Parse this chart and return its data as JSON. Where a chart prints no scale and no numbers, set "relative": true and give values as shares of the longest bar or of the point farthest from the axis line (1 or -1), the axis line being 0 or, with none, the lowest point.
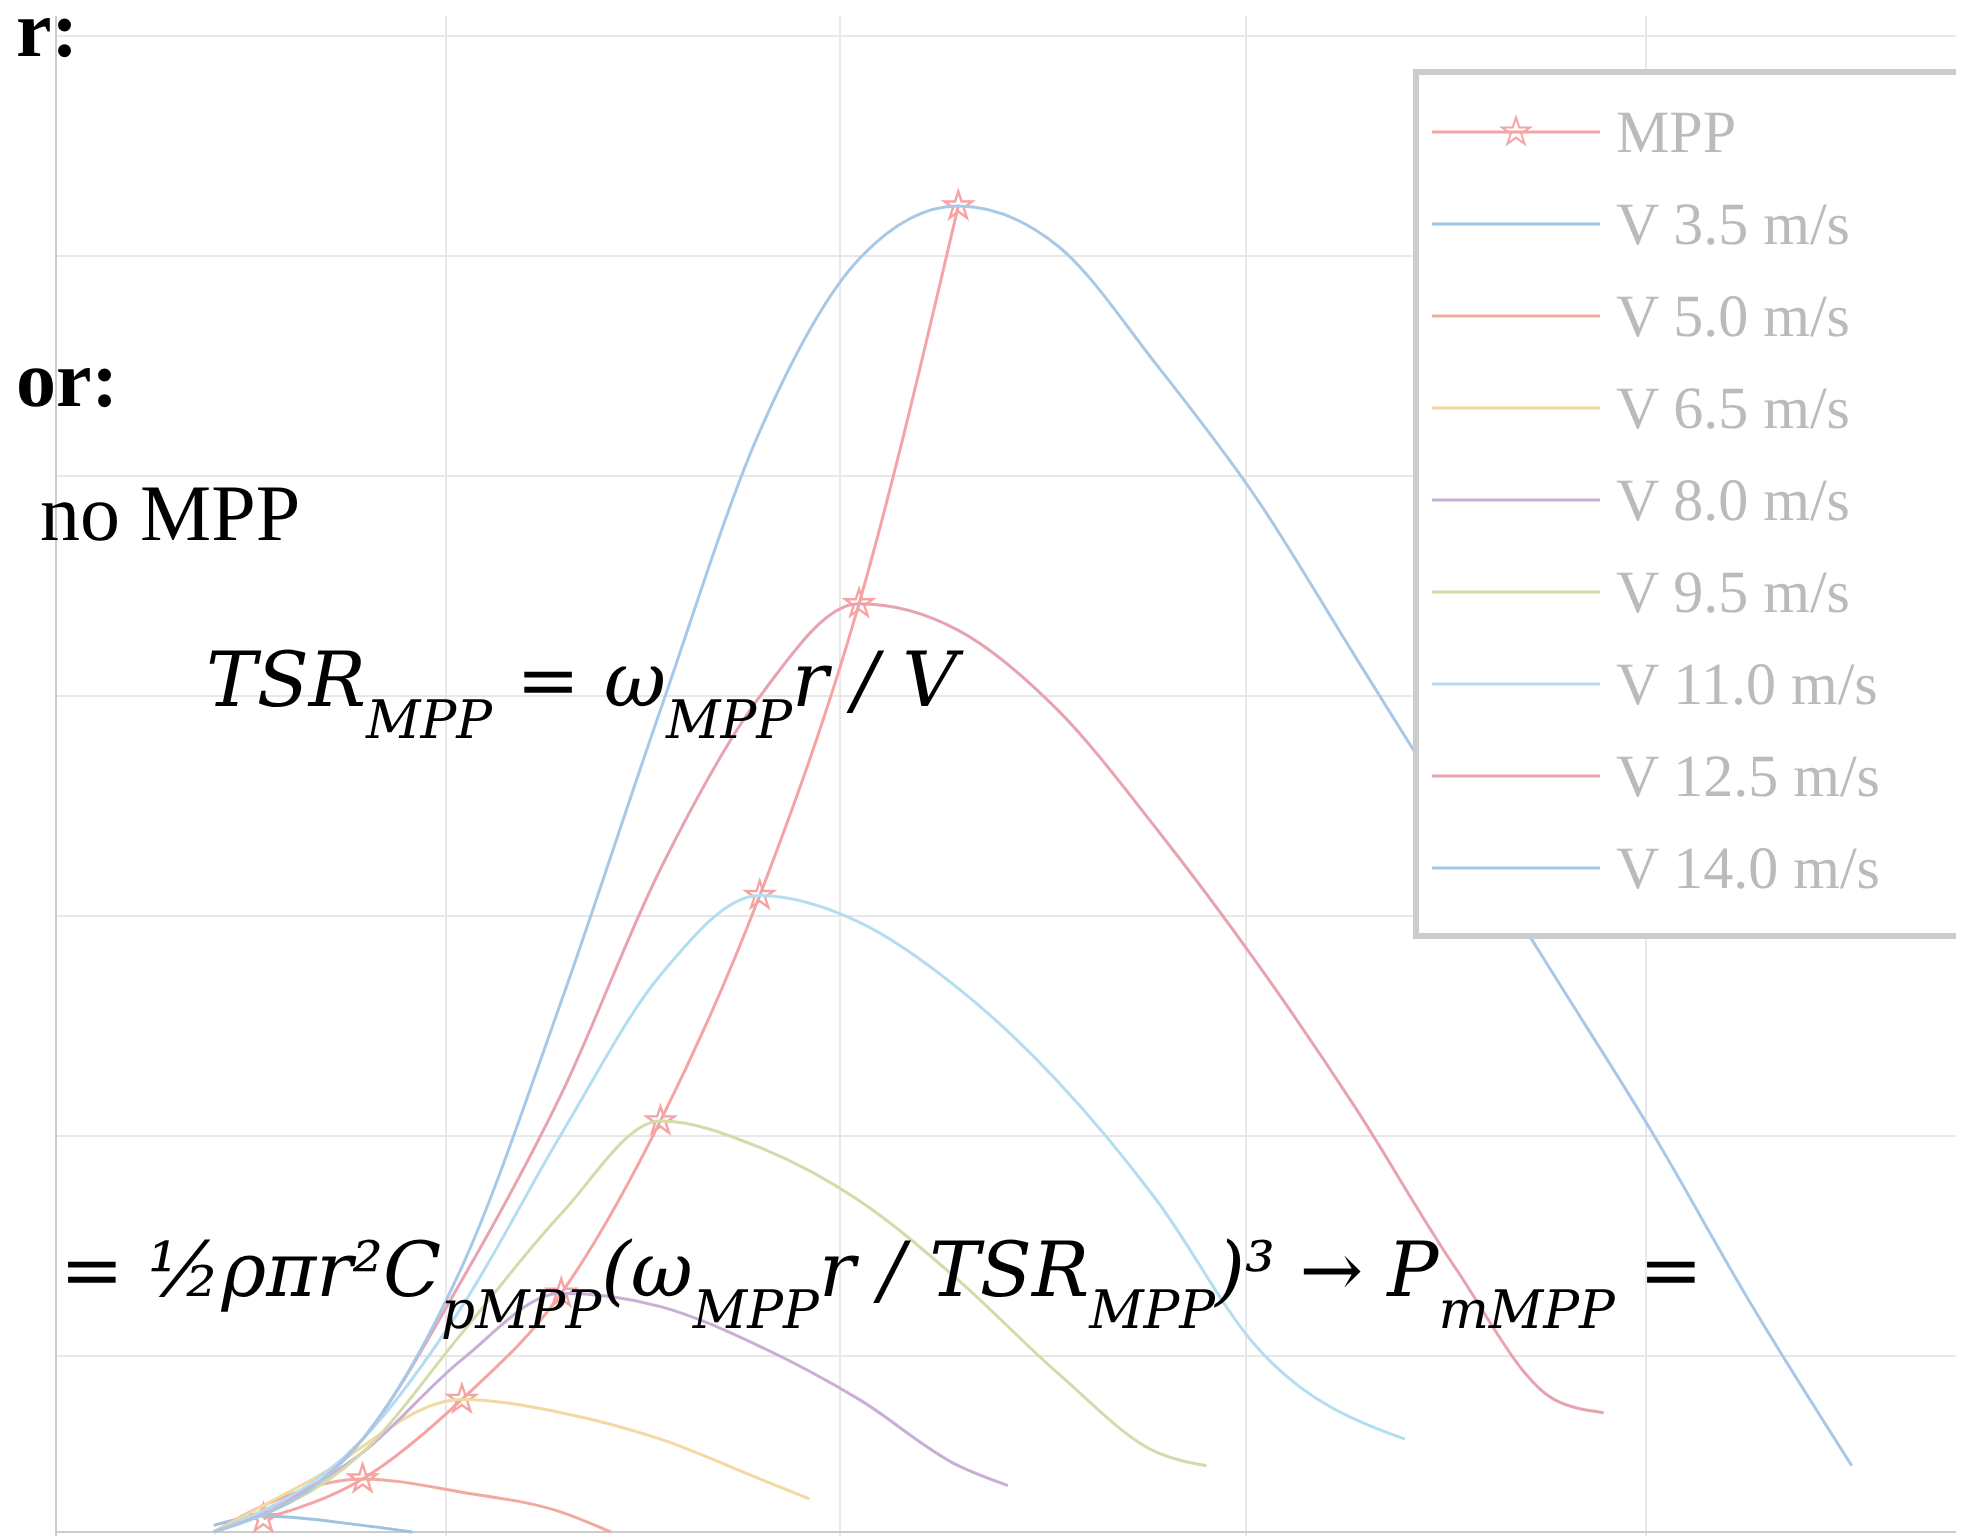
{
  "chart_data": {
    "type": "line",
    "relative": true,
    "grid": true,
    "legend": "top right",
    "line_style": "solid",
    "categories": [
      null,
      null,
      null,
      null,
      null,
      null,
      null,
      null,
      null,
      null,
      null,
      null,
      null,
      null,
      null,
      null,
      null,
      null,
      null,
      null,
      null,
      null,
      null,
      null,
      null,
      null,
      null,
      null,
      null,
      null,
      null,
      null,
      null,
      null
    ],
    "series": [
      {
        "name": "MPP",
        "color": "#f5a3a3",
        "marker": "star",
        "values": [
          null,
          0.01,
          null,
          0.04,
          null,
          0.1,
          null,
          0.18,
          null,
          0.31,
          null,
          0.48,
          null,
          0.7,
          null,
          1.0,
          null,
          null,
          null,
          null,
          null,
          null,
          null,
          null,
          null,
          null,
          null,
          null,
          null,
          null,
          null,
          null,
          null,
          null
        ]
      },
      {
        "name": "V 3.5 m/s",
        "color": "#9cc3e0",
        "values": [
          0.005,
          0.012,
          null,
          0.005,
          0.0,
          null,
          null,
          null,
          null,
          null,
          null,
          null,
          null,
          null,
          null,
          null,
          null,
          null,
          null,
          null,
          null,
          null,
          null,
          null,
          null,
          null,
          null,
          null,
          null,
          null,
          null,
          null,
          null,
          null
        ]
      },
      {
        "name": "V 5.0 m/s",
        "color": "#f2a9a0",
        "values": [
          0,
          0.02,
          null,
          0.04,
          null,
          0.03,
          null,
          0.015,
          0.0,
          null,
          null,
          null,
          null,
          null,
          null,
          null,
          null,
          null,
          null,
          null,
          null,
          null,
          null,
          null,
          null,
          null,
          null,
          null,
          null,
          null,
          null,
          null,
          null,
          null
        ]
      },
      {
        "name": "V 6.5 m/s",
        "color": "#f2d9a0",
        "values": [
          0,
          null,
          0.04,
          null,
          null,
          0.1,
          null,
          0.09,
          null,
          0.07,
          null,
          0.04,
          0.025,
          null,
          null,
          null,
          null,
          null,
          null,
          null,
          null,
          null,
          null,
          null,
          null,
          null,
          null,
          null,
          null,
          null,
          null,
          null,
          null,
          null
        ]
      },
      {
        "name": "V 8.0 m/s",
        "color": "#c9aed6",
        "values": [
          0,
          null,
          null,
          0.06,
          null,
          0.13,
          null,
          0.18,
          null,
          0.17,
          null,
          0.14,
          null,
          0.1,
          null,
          0.05,
          0.035,
          null,
          null,
          null,
          null,
          null,
          null,
          null,
          null,
          null,
          null,
          null,
          null,
          null,
          null,
          null,
          null,
          null
        ]
      },
      {
        "name": "V 9.5 m/s",
        "color": "#d3dca8",
        "values": [
          0,
          null,
          null,
          0.06,
          null,
          0.15,
          null,
          0.24,
          null,
          0.31,
          null,
          0.29,
          null,
          0.25,
          null,
          0.19,
          null,
          0.12,
          null,
          0.06,
          0.05,
          null,
          null,
          null,
          null,
          null,
          null,
          null,
          null,
          null,
          null,
          null,
          null,
          null
        ]
      },
      {
        "name": "V 11.0 m/s",
        "color": "#b3ddf0",
        "values": [
          0,
          null,
          null,
          0.07,
          null,
          0.17,
          null,
          0.3,
          null,
          0.42,
          null,
          0.48,
          null,
          0.46,
          null,
          0.41,
          null,
          0.34,
          null,
          0.25,
          null,
          0.14,
          null,
          null,
          0.07,
          null,
          null,
          null,
          null,
          null,
          null,
          null,
          null,
          null
        ]
      },
      {
        "name": "V 12.5 m/s",
        "color": "#e8a3b0",
        "values": [
          0,
          null,
          null,
          0.07,
          null,
          0.19,
          null,
          0.33,
          null,
          0.5,
          null,
          0.63,
          null,
          0.7,
          null,
          0.68,
          null,
          0.62,
          null,
          0.53,
          null,
          0.43,
          null,
          0.32,
          null,
          0.2,
          null,
          0.1,
          0.09,
          null,
          null,
          null,
          null,
          null
        ]
      },
      {
        "name": "V 14.0 m/s",
        "color": "#a8c8e8",
        "values": [
          0,
          null,
          null,
          0.07,
          null,
          0.2,
          null,
          0.4,
          null,
          0.62,
          null,
          0.83,
          null,
          0.96,
          null,
          1.0,
          null,
          0.97,
          null,
          0.88,
          null,
          0.78,
          null,
          0.66,
          null,
          null,
          null,
          0.42,
          null,
          0.3,
          null,
          0.17,
          null,
          0.05
        ]
      }
    ],
    "annotations": [
      "r:",
      "or:",
      "no MPP",
      "TSR$_{MPP}$ = ω$_{MPP}$r / V",
      "= ½ρπr²C$_{pMPP}$(ω$_{MPP}$r / TSR$_{MPP}$)³  →  P$_{mMPP}$ ="
    ]
  }
}
